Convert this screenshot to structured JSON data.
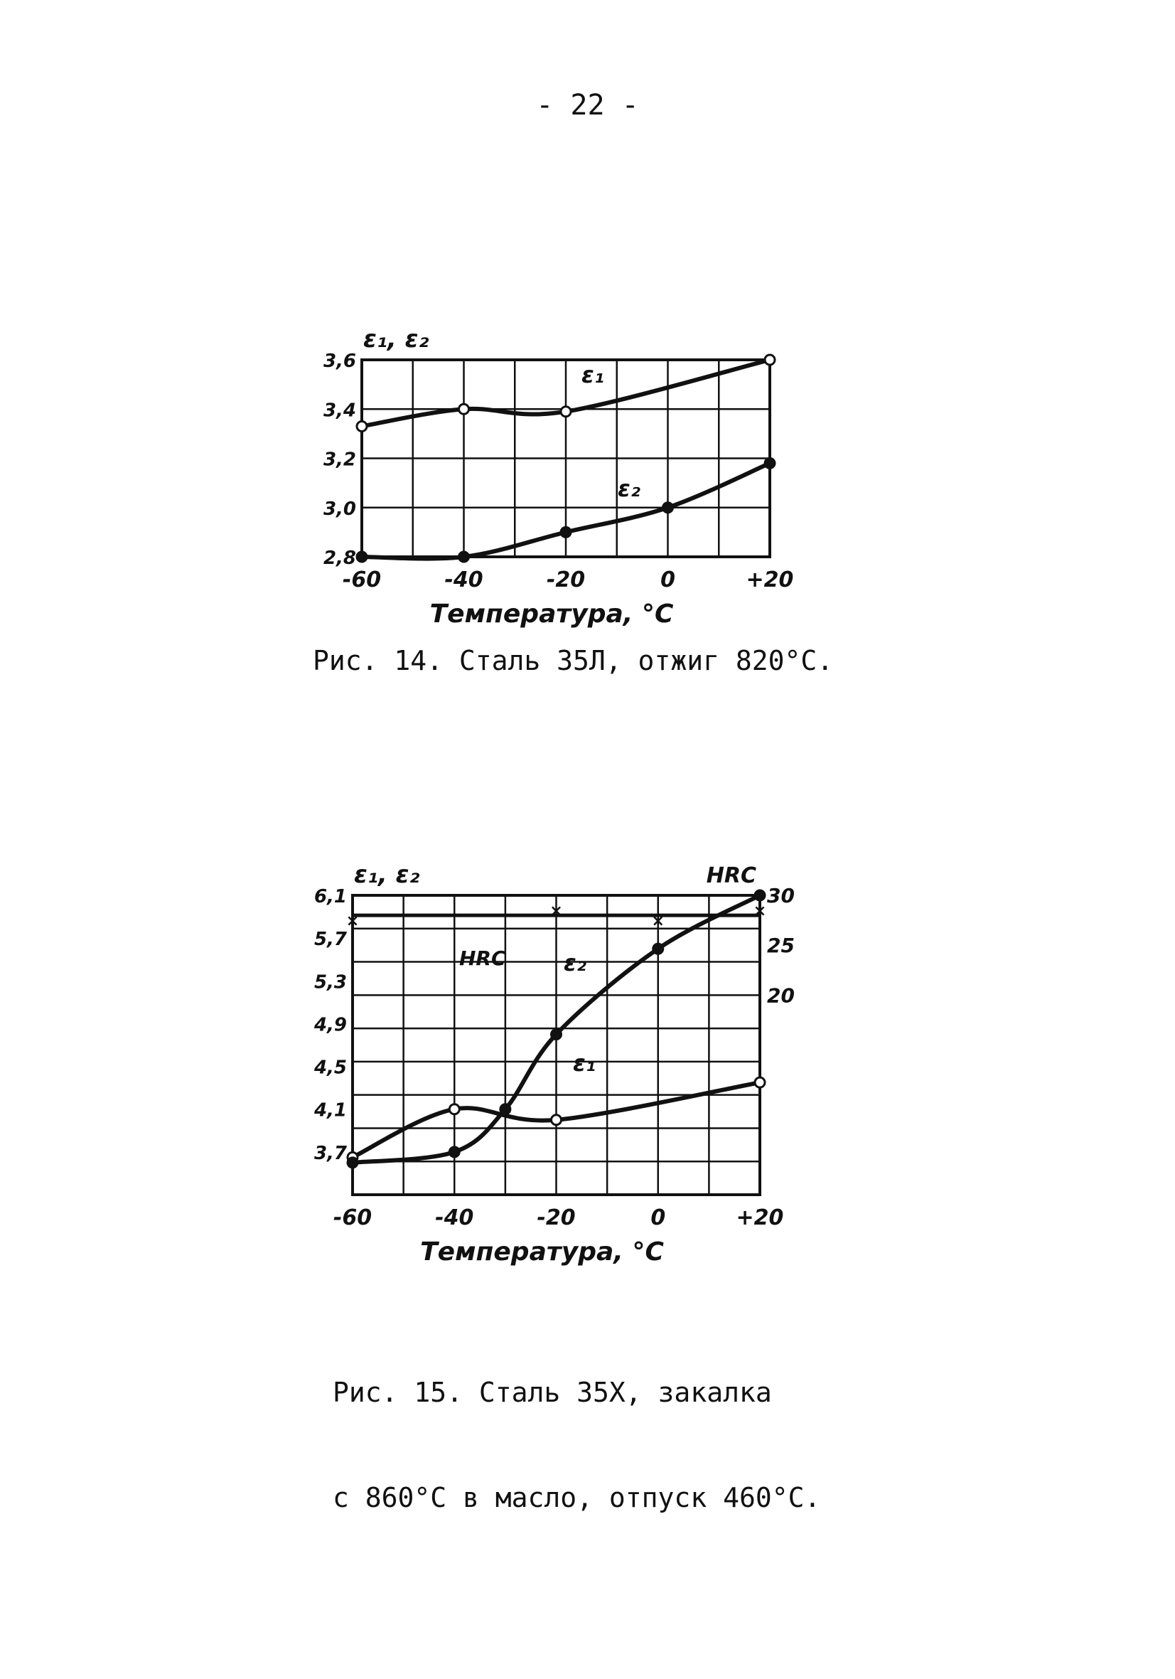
{
  "page": {
    "number": "- 22 -"
  },
  "chart_data": [
    {
      "type": "line",
      "caption": "Рис. 14. Сталь 35Л, отжиг 820°С.",
      "ylabel": "ε₁, ε₂",
      "xlabel": "Температура, °С",
      "x_ticks": [
        "-60",
        "-40",
        "-20",
        "0",
        "+20"
      ],
      "y_ticks": [
        "2,8",
        "3,0",
        "3,2",
        "3,4",
        "3,6"
      ],
      "xlim": [
        -60,
        20
      ],
      "ylim": [
        2.8,
        3.6
      ],
      "grid": true,
      "series": [
        {
          "name": "ε₁",
          "marker": "open",
          "x": [
            -60,
            -40,
            -20,
            20
          ],
          "y": [
            3.33,
            3.4,
            3.39,
            3.6
          ]
        },
        {
          "name": "ε₂",
          "marker": "filled",
          "x": [
            -60,
            -40,
            -20,
            0,
            20
          ],
          "y": [
            2.8,
            2.8,
            2.9,
            3.0,
            3.18
          ]
        }
      ]
    },
    {
      "type": "line",
      "caption_lines": [
        "Рис. 15. Сталь 35Х, закалка",
        "с 860°С в масло, отпуск 460°С."
      ],
      "ylabel": "ε₁, ε₂",
      "ylabel_right": "HRC",
      "xlabel": "Температура, °С",
      "x_ticks": [
        "-60",
        "-40",
        "-20",
        "0",
        "+20"
      ],
      "y_ticks": [
        "3,7",
        "4,1",
        "4,5",
        "4,9",
        "5,3",
        "5,7",
        "6,1"
      ],
      "y_ticks_right": [
        "20",
        "25",
        "30"
      ],
      "xlim": [
        -60,
        20
      ],
      "ylim": [
        3.3,
        6.1
      ],
      "ylim_right": [
        0,
        30
      ],
      "grid": true,
      "hrc_label": "HRC",
      "series": [
        {
          "name": "ε₁",
          "axis": "left",
          "marker": "open",
          "x": [
            -60,
            -40,
            -20,
            20
          ],
          "y": [
            3.65,
            4.1,
            4.0,
            4.35
          ]
        },
        {
          "name": "ε₂",
          "axis": "left",
          "marker": "filled",
          "x": [
            -60,
            -40,
            -30,
            -20,
            0,
            20
          ],
          "y": [
            3.6,
            3.7,
            4.1,
            4.8,
            5.6,
            6.1
          ]
        },
        {
          "name": "HRC",
          "axis": "right",
          "marker": "cross",
          "x": [
            -60,
            -20,
            0,
            20
          ],
          "y": [
            27.5,
            28.5,
            27.5,
            28.5
          ]
        }
      ]
    }
  ]
}
